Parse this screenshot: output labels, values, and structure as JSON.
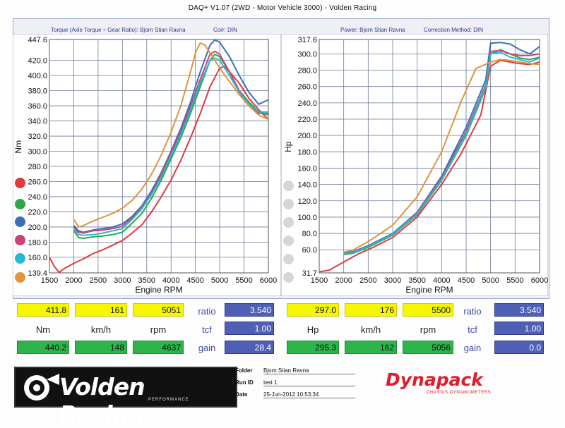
{
  "app_title": "DAQ+ V1.07 (2WD - Motor Vehicle 3000) - Volden Racing",
  "left_header": {
    "title": "Torque (Axle Torque ÷ Gear Ratio): Bjorn Stian Ravna",
    "corr": "Corr: DIN"
  },
  "right_header": {
    "title": "Power: Bjorn Stian Ravna",
    "corr": "Correction Method: DIN"
  },
  "colors": {
    "red": "#e03a3e",
    "green": "#2aa84a",
    "blue": "#3a6fb8",
    "pink": "#d0407a",
    "cyan": "#26b9d6",
    "orange": "#e0943c",
    "grid": "#6d7a9a"
  },
  "chart_data": [
    {
      "type": "line",
      "xlabel": "Engine RPM",
      "ylabel": "Nm",
      "xlim": [
        1500,
        6000
      ],
      "ylim": [
        139.4,
        447.6
      ],
      "xticks": [
        "1500",
        "2000",
        "2500",
        "3000",
        "3500",
        "4000",
        "4500",
        "5000",
        "5500",
        "6000"
      ],
      "yticks": [
        "447.6",
        "420.0",
        "400.0",
        "380.0",
        "360.0",
        "340.0",
        "320.0",
        "300.0",
        "280.0",
        "260.0",
        "240.0",
        "220.0",
        "200.0",
        "180.0",
        "160.0",
        "139.4"
      ],
      "grid": true,
      "series": [
        {
          "color": "red",
          "x": [
            1500,
            1600,
            1700,
            1800,
            2000,
            2200,
            2400,
            2600,
            2800,
            3000,
            3200,
            3400,
            3600,
            3800,
            4000,
            4200,
            4400,
            4600,
            4800,
            5000,
            5100,
            5200,
            5400,
            5600,
            5800,
            6000
          ],
          "y": [
            160,
            148,
            140,
            145,
            152,
            158,
            165,
            170,
            176,
            182,
            192,
            203,
            220,
            240,
            262,
            288,
            318,
            350,
            385,
            410,
            412,
            405,
            390,
            370,
            355,
            342
          ]
        },
        {
          "color": "green",
          "x": [
            2000,
            2100,
            2200,
            2400,
            2600,
            2800,
            3000,
            3200,
            3400,
            3600,
            3800,
            4000,
            4200,
            4400,
            4600,
            4800,
            4900,
            5000,
            5200,
            5400,
            5600,
            5800,
            6000
          ],
          "y": [
            195,
            186,
            185,
            187,
            188,
            190,
            193,
            205,
            218,
            238,
            262,
            290,
            318,
            350,
            385,
            420,
            428,
            425,
            405,
            380,
            365,
            352,
            348
          ]
        },
        {
          "color": "blue",
          "x": [
            2000,
            2100,
            2200,
            2400,
            2600,
            2800,
            3000,
            3200,
            3400,
            3600,
            3800,
            4000,
            4200,
            4400,
            4600,
            4800,
            4900,
            5000,
            5200,
            5400,
            5600,
            5800,
            6000
          ],
          "y": [
            202,
            195,
            193,
            196,
            198,
            200,
            204,
            214,
            228,
            248,
            272,
            300,
            330,
            365,
            405,
            440,
            447,
            444,
            425,
            400,
            378,
            362,
            368
          ]
        },
        {
          "color": "pink",
          "x": [
            2000,
            2100,
            2200,
            2400,
            2600,
            2800,
            3000,
            3200,
            3400,
            3600,
            3800,
            4000,
            4200,
            4400,
            4600,
            4800,
            4900,
            5000,
            5200,
            5400,
            5600,
            5800,
            6000
          ],
          "y": [
            200,
            193,
            192,
            195,
            196,
            198,
            201,
            212,
            225,
            245,
            270,
            298,
            326,
            360,
            395,
            428,
            432,
            428,
            405,
            380,
            362,
            350,
            350
          ]
        },
        {
          "color": "cyan",
          "x": [
            2000,
            2100,
            2200,
            2400,
            2600,
            2800,
            3000,
            3200,
            3400,
            3600,
            3800,
            4000,
            4200,
            4400,
            4600,
            4800,
            4900,
            5000,
            5200,
            5400,
            5600,
            5800,
            6000
          ],
          "y": [
            198,
            190,
            189,
            190,
            192,
            195,
            198,
            210,
            224,
            243,
            266,
            294,
            322,
            355,
            390,
            420,
            423,
            420,
            400,
            378,
            362,
            352,
            352
          ]
        },
        {
          "color": "orange",
          "x": [
            2000,
            2100,
            2200,
            2400,
            2600,
            2800,
            3000,
            3200,
            3400,
            3600,
            3800,
            4000,
            4200,
            4400,
            4500,
            4600,
            4700,
            4800,
            5000,
            5200,
            5400,
            5600,
            5800,
            6000
          ],
          "y": [
            210,
            200,
            202,
            208,
            213,
            218,
            225,
            235,
            250,
            270,
            295,
            325,
            360,
            405,
            430,
            443,
            440,
            430,
            410,
            392,
            375,
            360,
            348,
            342
          ]
        }
      ]
    },
    {
      "type": "line",
      "xlabel": "Engine RPM",
      "ylabel": "Hp",
      "xlim": [
        1500,
        6000
      ],
      "ylim": [
        31.7,
        317.6
      ],
      "xticks": [
        "1500",
        "2000",
        "2500",
        "3000",
        "3500",
        "4000",
        "4500",
        "5000",
        "5500",
        "6000"
      ],
      "yticks": [
        "317.6",
        "300.0",
        "280.0",
        "260.0",
        "240.0",
        "220.0",
        "200.0",
        "180.0",
        "160.0",
        "140.0",
        "120.0",
        "100.0",
        "80.0",
        "60.0",
        "31.7"
      ],
      "grid": true,
      "series": [
        {
          "color": "red",
          "x": [
            1500,
            1700,
            2000,
            2300,
            2600,
            3000,
            3500,
            4000,
            4400,
            4800,
            5000,
            5200,
            5400,
            5600,
            5800,
            6000
          ],
          "y": [
            33,
            35,
            45,
            55,
            63,
            75,
            100,
            140,
            178,
            225,
            285,
            292,
            290,
            288,
            287,
            290
          ]
        },
        {
          "color": "green",
          "x": [
            2000,
            2200,
            2500,
            3000,
            3500,
            4000,
            4500,
            4900,
            5000,
            5200,
            5400,
            5600,
            5800,
            6000
          ],
          "y": [
            54,
            56,
            63,
            78,
            103,
            145,
            200,
            258,
            300,
            305,
            300,
            295,
            293,
            296
          ]
        },
        {
          "color": "blue",
          "x": [
            2000,
            2200,
            2500,
            3000,
            3500,
            4000,
            4500,
            4900,
            5000,
            5200,
            5400,
            5600,
            5800,
            6000
          ],
          "y": [
            56,
            58,
            65,
            80,
            106,
            150,
            210,
            268,
            313,
            314,
            312,
            305,
            300,
            309
          ]
        },
        {
          "color": "pink",
          "x": [
            2000,
            2200,
            2500,
            3000,
            3500,
            4000,
            4500,
            4900,
            5000,
            5200,
            5400,
            5600,
            5800,
            6000
          ],
          "y": [
            55,
            57,
            64,
            79,
            105,
            148,
            205,
            262,
            303,
            304,
            300,
            298,
            298,
            300
          ]
        },
        {
          "color": "cyan",
          "x": [
            2000,
            2200,
            2500,
            3000,
            3500,
            4000,
            4500,
            4900,
            5000,
            5200,
            5400,
            5600,
            5800,
            6000
          ],
          "y": [
            55,
            57,
            64,
            79,
            104,
            146,
            202,
            260,
            300,
            302,
            296,
            293,
            290,
            295
          ]
        },
        {
          "color": "orange",
          "x": [
            2000,
            2200,
            2500,
            3000,
            3500,
            4000,
            4400,
            4700,
            5000,
            5200,
            5400,
            5600,
            5800,
            6000
          ],
          "y": [
            57,
            60,
            70,
            90,
            125,
            180,
            242,
            282,
            290,
            293,
            292,
            290,
            288,
            287
          ]
        }
      ]
    }
  ],
  "panels": {
    "left": {
      "row1": [
        "411.8",
        "161",
        "5051"
      ],
      "row2": [
        "Nm",
        "km/h",
        "rpm"
      ],
      "row3": [
        "440.2",
        "148",
        "4637"
      ],
      "side_labels": [
        "ratio",
        "tcf",
        "gain"
      ],
      "side_values": [
        "3.540",
        "1.00",
        "28.4"
      ]
    },
    "right": {
      "row1": [
        "297.0",
        "176",
        "5500"
      ],
      "row2": [
        "Hp",
        "km/h",
        "rpm"
      ],
      "row3": [
        "295.3",
        "162",
        "5056"
      ],
      "side_labels": [
        "ratio",
        "tcf",
        "gain"
      ],
      "side_values": [
        "3.540",
        "1.00",
        "0.0"
      ]
    }
  },
  "footer": {
    "logo": "Volden Racing",
    "logo_sub": "PERFORMANCE",
    "folder_label": "Folder",
    "folder_value": "Bjorn Stian Ravna",
    "runid_label": "Run ID",
    "runid_value": "test 1",
    "date_label": "Date",
    "date_value": "25-Jun-2012 10:53:34",
    "brand": "Dynapack",
    "brand_sub": "CHASSIS DYNAMOMETERS"
  }
}
